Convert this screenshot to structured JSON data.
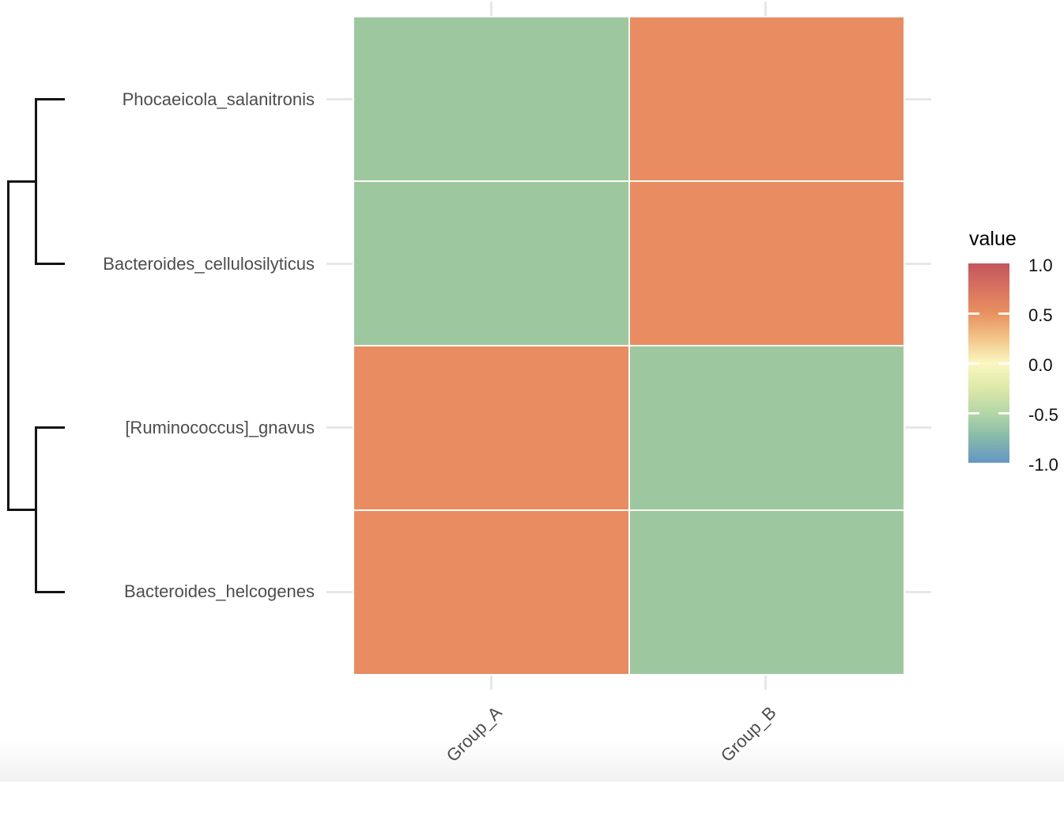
{
  "chart_data": {
    "type": "heatmap",
    "rows": [
      "Phocaeicola_salanitronis",
      "Bacteroides_cellulosilyticus",
      "[Ruminococcus]_gnavus",
      "Bacteroides_helcogenes"
    ],
    "columns": [
      "Group_A",
      "Group_B"
    ],
    "values": [
      [
        -0.6,
        0.6
      ],
      [
        -0.6,
        0.6
      ],
      [
        0.6,
        -0.6
      ],
      [
        0.6,
        -0.6
      ]
    ],
    "cell_colors": {
      "positive": "#e98c62",
      "negative": "#9dc89f"
    },
    "row_dendrogram": {
      "clusters": [
        [
          "Phocaeicola_salanitronis",
          "Bacteroides_cellulosilyticus"
        ],
        [
          "[Ruminococcus]_gnavus",
          "Bacteroides_helcogenes"
        ]
      ]
    },
    "legend": {
      "title": "value",
      "ticks": [
        "1.0",
        "0.5",
        "0.0",
        "-0.5",
        "-1.0"
      ],
      "range": [
        -1.0,
        1.0
      ],
      "position": "right",
      "gradient_stops": [
        {
          "value": 1.0,
          "color": "#c4555e"
        },
        {
          "value": 0.75,
          "color": "#d8725f"
        },
        {
          "value": 0.5,
          "color": "#e8915f"
        },
        {
          "value": 0.25,
          "color": "#f3c489"
        },
        {
          "value": 0.0,
          "color": "#faf7c0"
        },
        {
          "value": -0.25,
          "color": "#dde8a8"
        },
        {
          "value": -0.5,
          "color": "#b4d6a6"
        },
        {
          "value": -0.75,
          "color": "#86b9aa"
        },
        {
          "value": -1.0,
          "color": "#6496c5"
        }
      ]
    },
    "style": {
      "axis_text_color": "#4d4d4d",
      "dendrogram_color": "#141414",
      "grid_tick_color": "#e7e7e7",
      "grid": "off"
    }
  }
}
